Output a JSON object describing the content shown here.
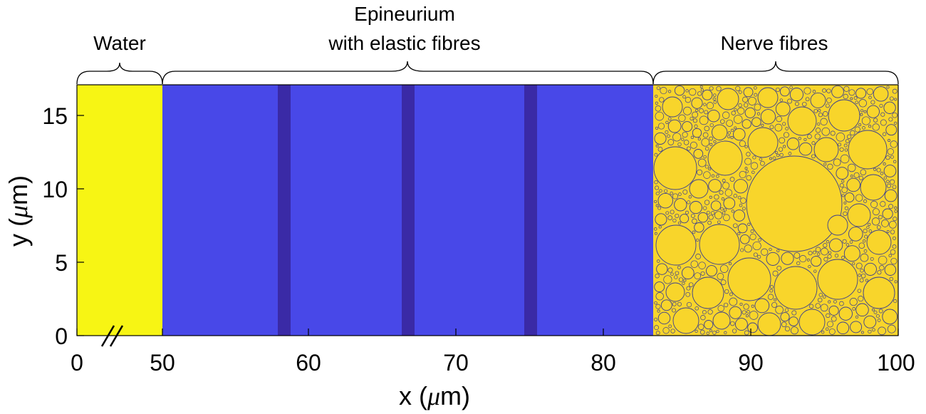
{
  "figure": {
    "regions": {
      "water": {
        "label": "Water",
        "color": "#f7f514"
      },
      "epineurium": {
        "label_line1": "Epineurium",
        "label_line2": "with elastic fibres",
        "color": "#4848e8",
        "fibre_color": "#3a2aa6"
      },
      "nerve": {
        "label": "Nerve fibres",
        "color": "#f8d52b",
        "outline_color": "#3b3f8f"
      }
    },
    "x_axis": {
      "label_prefix": "x (",
      "label_mu": "μ",
      "label_suffix": "m)",
      "ticks": [
        "0",
        "50",
        "60",
        "70",
        "80",
        "90",
        "100"
      ],
      "break_mark": "//"
    },
    "y_axis": {
      "label_prefix": "y (",
      "label_mu": "μ",
      "label_suffix": "m)",
      "ticks": [
        "0",
        "5",
        "10",
        "15"
      ]
    }
  }
}
